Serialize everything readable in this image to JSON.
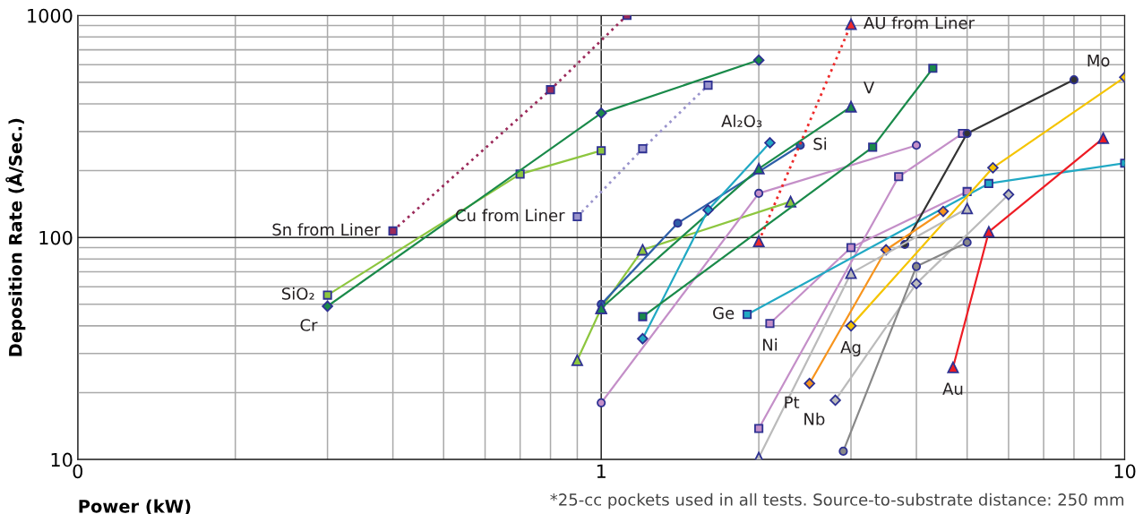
{
  "chart_data": {
    "type": "line",
    "xlabel": "Power (kW)",
    "ylabel": "Deposition Rate (Å/Sec.)",
    "log": "xy",
    "xlim": [
      0.1,
      10
    ],
    "xticks": [
      {
        "value": 0.1,
        "label": "0"
      },
      1,
      10
    ],
    "ylim": [
      10,
      1000
    ],
    "yticks": [
      10,
      100,
      1000
    ],
    "grid": true,
    "legend": false,
    "annotations": [
      "*25-cc pockets used in all tests. Source-to-substrate distance: 250 mm"
    ],
    "series": [
      {
        "name": "Sn from Liner",
        "color": "#9b2a5a",
        "marker": "square",
        "line_style": "dotted",
        "x": [
          0.4,
          0.8,
          1.12
        ],
        "values": [
          107,
          463,
          1000
        ]
      },
      {
        "name": "Cu from Liner",
        "color": "#9a94cc",
        "marker": "square",
        "line_style": "dotted",
        "x": [
          0.9,
          1.2,
          1.6
        ],
        "values": [
          124,
          251,
          485
        ]
      },
      {
        "name": "SiO₂",
        "color": "#8dc63f",
        "marker": "square",
        "line_style": "solid",
        "x": [
          0.3,
          0.7,
          1.0
        ],
        "values": [
          55,
          193,
          246
        ]
      },
      {
        "name": "Cr",
        "color": "#1a8a4a",
        "marker": "diamond",
        "line_style": "solid",
        "x": [
          0.3,
          1.0,
          2.0
        ],
        "values": [
          49,
          363,
          629
        ]
      },
      {
        "color": "#8dc63f",
        "marker": "triangle",
        "line_style": "solid",
        "x": [
          0.9,
          1.0,
          1.2,
          2.3
        ],
        "values": [
          28,
          48,
          88,
          145
        ]
      },
      {
        "name": "Si",
        "color": "#2e5fa8",
        "marker": "circle",
        "line_style": "solid",
        "x": [
          1.0,
          1.4,
          2.4
        ],
        "values": [
          50,
          116,
          260
        ]
      },
      {
        "name": "V",
        "color": "#1a8a4a",
        "marker": "triangle",
        "line_style": "solid",
        "x": [
          1.0,
          2.0,
          3.0
        ],
        "values": [
          48,
          204,
          388
        ]
      },
      {
        "name": "Al₂O₃",
        "color": "#21a9c4",
        "marker": "diamond",
        "line_style": "solid",
        "x": [
          1.2,
          1.6,
          2.1
        ],
        "values": [
          35,
          133,
          267
        ]
      },
      {
        "color": "#c48fc8",
        "marker": "circle",
        "line_style": "solid",
        "x": [
          1.0,
          2.0,
          4.0
        ],
        "values": [
          18,
          158,
          260
        ]
      },
      {
        "color": "#1a8a4a",
        "marker": "square",
        "line_style": "solid",
        "x": [
          1.2,
          3.3,
          4.3
        ],
        "values": [
          44,
          255,
          578
        ]
      },
      {
        "name": "AU from Liner",
        "color": "#ee2a2a",
        "marker": "triangle",
        "line_style": "dotted",
        "x": [
          2.0,
          3.0
        ],
        "values": [
          96,
          912
        ]
      },
      {
        "color": "#c48fc8",
        "marker": "square",
        "line_style": "solid",
        "x": [
          2.0,
          3.7,
          4.9
        ],
        "values": [
          13.8,
          188,
          294
        ]
      },
      {
        "name": "Ni",
        "color": "#c48fc8",
        "marker": "square",
        "line_style": "solid",
        "x": [
          2.1,
          3.0,
          5.0
        ],
        "values": [
          41,
          90,
          161
        ]
      },
      {
        "name": "Ge",
        "color": "#21a9c4",
        "marker": "square",
        "line_style": "solid",
        "x": [
          1.9,
          5.5,
          10
        ],
        "values": [
          45,
          175,
          216
        ]
      },
      {
        "name": "Mo",
        "color": "#333333",
        "marker": "circle",
        "line_style": "solid",
        "x": [
          3.8,
          5.0,
          8.0
        ],
        "values": [
          93,
          294,
          513
        ]
      },
      {
        "name": "Ag",
        "color": "#f5c400",
        "marker": "diamond",
        "line_style": "solid",
        "x": [
          3.0,
          5.6,
          10
        ],
        "values": [
          40,
          206,
          527
        ]
      },
      {
        "name": "Pt",
        "color": "#f7941d",
        "marker": "diamond",
        "line_style": "solid",
        "x": [
          2.5,
          3.5,
          4.5
        ],
        "values": [
          22,
          88,
          131
        ]
      },
      {
        "color": "#bbbbbb",
        "marker": "triangle",
        "line_style": "solid",
        "x": [
          2.0,
          3.0,
          5.0
        ],
        "values": [
          10.2,
          69,
          135
        ]
      },
      {
        "name": "Nb",
        "color": "#bbbbbb",
        "marker": "diamond",
        "line_style": "solid",
        "x": [
          2.8,
          4.0,
          6.0
        ],
        "values": [
          18.5,
          62,
          156
        ]
      },
      {
        "color": "#888888",
        "marker": "circle",
        "line_style": "solid",
        "x": [
          2.9,
          4.0,
          5.0
        ],
        "values": [
          10.9,
          74,
          95
        ]
      },
      {
        "name": "Au",
        "color": "#ee1c24",
        "marker": "triangle",
        "line_style": "solid",
        "x": [
          4.7,
          5.5,
          9.1
        ],
        "values": [
          26,
          106,
          280
        ]
      }
    ]
  }
}
